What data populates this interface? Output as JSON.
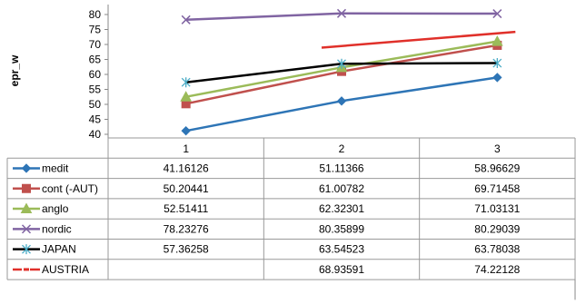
{
  "chart_data": {
    "type": "line",
    "title": "",
    "xlabel": "",
    "ylabel": "epr_w",
    "categories": [
      "1",
      "2",
      "3"
    ],
    "yticks": [
      40,
      45,
      50,
      55,
      60,
      65,
      70,
      75,
      80
    ],
    "ylim": [
      37,
      82
    ],
    "grid": false,
    "legend_placement": "data-table-left",
    "series": [
      {
        "name": "medit",
        "values": [
          41.16126,
          51.11366,
          58.96629
        ],
        "display": [
          "41.16126",
          "51.11366",
          "58.96629"
        ],
        "color": "#2E75B6",
        "marker": "diamond"
      },
      {
        "name": "cont (-AUT)",
        "values": [
          50.20441,
          61.00782,
          69.71458
        ],
        "display": [
          "50.20441",
          "61.00782",
          "69.71458"
        ],
        "color": "#C0504D",
        "marker": "square"
      },
      {
        "name": "anglo",
        "values": [
          52.51411,
          62.32301,
          71.03131
        ],
        "display": [
          "52.51411",
          "62.32301",
          "71.03131"
        ],
        "color": "#9BBB59",
        "marker": "triangle"
      },
      {
        "name": "nordic",
        "values": [
          78.23276,
          80.35899,
          80.29039
        ],
        "display": [
          "78.23276",
          "80.35899",
          "80.29039"
        ],
        "color": "#8064A2",
        "marker": "x"
      },
      {
        "name": "JAPAN",
        "values": [
          57.36258,
          63.54523,
          63.78038
        ],
        "display": [
          "57.36258",
          "63.54523",
          "63.78038"
        ],
        "color": "#000000",
        "marker": "star"
      },
      {
        "name": "AUSTRIA",
        "values": [
          null,
          68.93591,
          74.22128
        ],
        "display": [
          "",
          "68.93591",
          "74.22128"
        ],
        "color": "#E0302A",
        "marker": "dash"
      }
    ]
  }
}
